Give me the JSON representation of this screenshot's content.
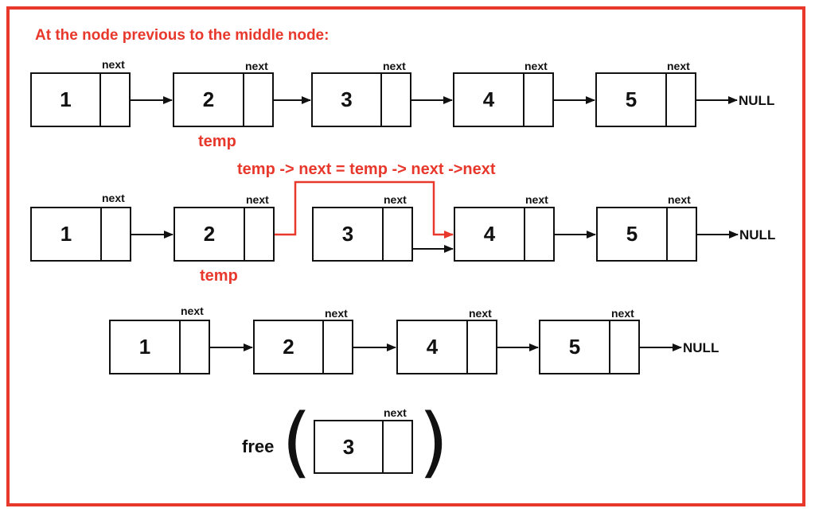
{
  "heading": "At the node previous to the middle node:",
  "next_label": "next",
  "null_label": "NULL",
  "temp_label": "temp",
  "code": "temp -> next = temp -> next ->next",
  "free_label": "free",
  "rows": [
    {
      "values": [
        "1",
        "2",
        "3",
        "4",
        "5"
      ]
    },
    {
      "values": [
        "1",
        "2",
        "3",
        "4",
        "5"
      ]
    },
    {
      "values": [
        "1",
        "2",
        "4",
        "5"
      ]
    }
  ],
  "freed_node": {
    "value": "3"
  },
  "colors": {
    "accent": "#e8382c",
    "ink": "#111111"
  }
}
